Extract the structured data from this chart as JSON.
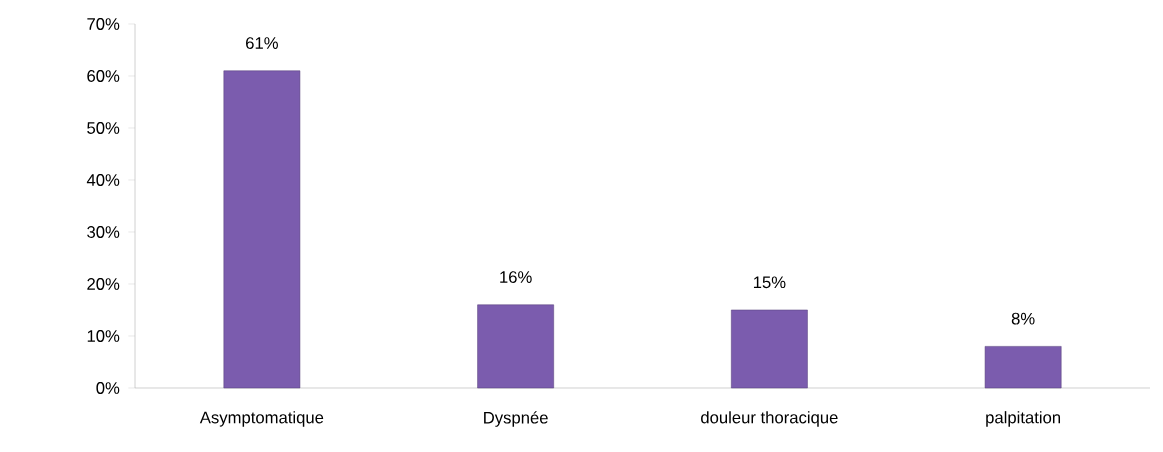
{
  "chart_data": {
    "type": "bar",
    "categories": [
      "Asymptomatique",
      "Dyspnée",
      "douleur thoracique",
      "palpitation"
    ],
    "values": [
      61,
      16,
      15,
      8
    ],
    "value_labels": [
      "61%",
      "16%",
      "15%",
      "8%"
    ],
    "color": "#7b5cae",
    "ylim": [
      0,
      70
    ],
    "yticks": [
      {
        "value": 0,
        "label": "0%"
      },
      {
        "value": 10,
        "label": "10%"
      },
      {
        "value": 20,
        "label": "20%"
      },
      {
        "value": 30,
        "label": "30%"
      },
      {
        "value": 40,
        "label": "40%"
      },
      {
        "value": 50,
        "label": "50%"
      },
      {
        "value": 60,
        "label": "60%"
      },
      {
        "value": 70,
        "label": "70%"
      }
    ],
    "grid": false
  }
}
